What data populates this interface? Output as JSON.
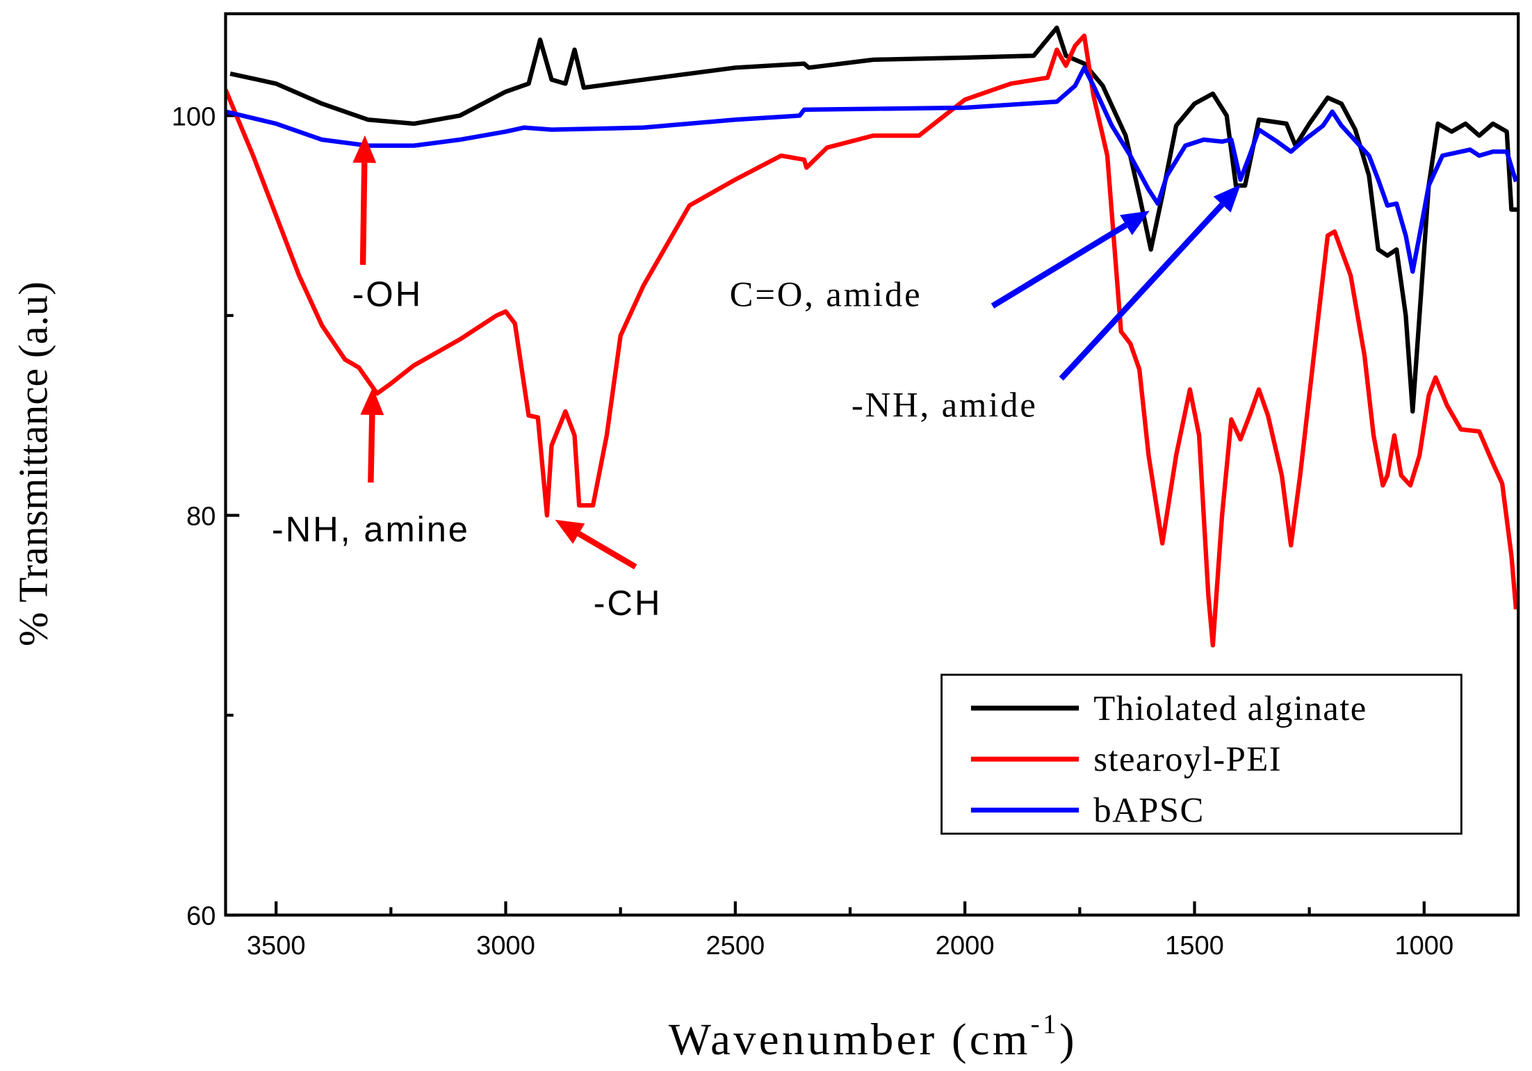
{
  "chart_data": {
    "type": "line",
    "xlabel": {
      "text": "Wavenumber (cm",
      "sup": "-1",
      "end": ")"
    },
    "ylabel": "% Transmittance (a.u)",
    "xlim": [
      3610,
      795
    ],
    "ylim": [
      60,
      105.1
    ],
    "xticks": [
      3500,
      3000,
      2500,
      2000,
      1500,
      1000
    ],
    "xminor_ticks": [
      3250,
      2750,
      2250,
      1750,
      1250
    ],
    "yticks": [
      60,
      80,
      100
    ],
    "yminor_ticks": [
      70,
      90
    ],
    "legend": "lower right",
    "series": [
      {
        "name": "Thiolated alginate",
        "color": "#000000",
        "x": [
          3600,
          3500,
          3400,
          3300,
          3200,
          3100,
          3000,
          2950,
          2925,
          2900,
          2870,
          2850,
          2830,
          2700,
          2500,
          2350,
          2340,
          2200,
          2000,
          1850,
          1800,
          1780,
          1740,
          1700,
          1650,
          1620,
          1595,
          1570,
          1540,
          1500,
          1460,
          1430,
          1410,
          1390,
          1360,
          1300,
          1280,
          1250,
          1210,
          1180,
          1150,
          1120,
          1100,
          1080,
          1060,
          1040,
          1025,
          1010,
          990,
          970,
          940,
          910,
          880,
          850,
          820,
          810,
          795
        ],
        "values": [
          102.1,
          101.6,
          100.6,
          99.8,
          99.6,
          100.0,
          101.2,
          101.6,
          103.8,
          101.8,
          101.6,
          103.3,
          101.4,
          101.8,
          102.4,
          102.6,
          102.4,
          102.8,
          102.9,
          103.0,
          104.4,
          103.0,
          102.6,
          101.5,
          99.0,
          96.0,
          93.3,
          96,
          99.5,
          100.6,
          101.1,
          100.0,
          96.5,
          96.5,
          99.8,
          99.6,
          98.5,
          99.6,
          100.9,
          100.6,
          99.3,
          97.0,
          93.3,
          93.0,
          93.3,
          90,
          85.2,
          90,
          96.5,
          99.6,
          99.2,
          99.6,
          99.0,
          99.6,
          99.2,
          95.3,
          95.3
        ]
      },
      {
        "name": "stearoyl-PEI",
        "color": "#ff0000",
        "x": [
          3610,
          3550,
          3500,
          3450,
          3400,
          3350,
          3320,
          3280,
          3250,
          3200,
          3100,
          3020,
          3000,
          2980,
          2950,
          2930,
          2910,
          2900,
          2870,
          2850,
          2840,
          2810,
          2780,
          2750,
          2700,
          2600,
          2500,
          2400,
          2350,
          2345,
          2300,
          2200,
          2100,
          2000,
          1900,
          1820,
          1800,
          1780,
          1760,
          1740,
          1720,
          1690,
          1660,
          1640,
          1620,
          1600,
          1570,
          1540,
          1510,
          1490,
          1470,
          1460,
          1440,
          1420,
          1400,
          1380,
          1360,
          1340,
          1310,
          1290,
          1270,
          1240,
          1210,
          1195,
          1160,
          1130,
          1110,
          1090,
          1080,
          1065,
          1050,
          1030,
          1010,
          990,
          975,
          950,
          920,
          880,
          850,
          830,
          810,
          800
        ],
        "values": [
          101.3,
          98,
          95,
          92,
          89.5,
          87.8,
          87.4,
          86.1,
          86.6,
          87.5,
          88.8,
          90,
          90.2,
          89.6,
          85,
          84.9,
          80.0,
          83.5,
          85.2,
          84,
          80.5,
          80.5,
          84,
          89,
          91.5,
          95.5,
          96.8,
          98,
          97.8,
          97.4,
          98.4,
          99,
          99,
          100.8,
          101.6,
          101.9,
          103.3,
          102.5,
          103.5,
          104.0,
          101,
          98,
          89.2,
          88.6,
          87.3,
          83,
          78.6,
          83,
          86.3,
          84,
          76,
          73.5,
          80,
          84.8,
          83.8,
          85,
          86.3,
          85,
          82,
          78.5,
          82,
          88,
          94,
          94.2,
          92,
          88,
          84,
          81.5,
          82,
          84,
          82,
          81.5,
          83,
          86,
          86.9,
          85.5,
          84.3,
          84.2,
          82.6,
          81.6,
          78,
          75.3
        ]
      },
      {
        "name": "bAPSC",
        "color": "#0000ff",
        "x": [
          3610,
          3500,
          3400,
          3300,
          3200,
          3100,
          3000,
          2960,
          2900,
          2700,
          2500,
          2360,
          2350,
          2000,
          1800,
          1760,
          1740,
          1720,
          1680,
          1640,
          1600,
          1580,
          1560,
          1520,
          1480,
          1440,
          1420,
          1400,
          1380,
          1360,
          1320,
          1290,
          1260,
          1220,
          1200,
          1180,
          1140,
          1120,
          1100,
          1080,
          1060,
          1040,
          1025,
          1010,
          990,
          960,
          900,
          880,
          850,
          820,
          800
        ],
        "values": [
          100.2,
          99.6,
          98.8,
          98.5,
          98.5,
          98.8,
          99.2,
          99.4,
          99.3,
          99.4,
          99.8,
          100,
          100.3,
          100.4,
          100.7,
          101.5,
          102.4,
          101.5,
          99.5,
          98,
          96.3,
          95.6,
          97,
          98.5,
          98.8,
          98.7,
          98.8,
          96.8,
          98,
          99.3,
          98.7,
          98.2,
          98.8,
          99.5,
          100.2,
          99.5,
          98.5,
          98.0,
          96.8,
          95.5,
          95.6,
          94,
          92.2,
          94,
          96.5,
          98.0,
          98.3,
          98.0,
          98.2,
          98.2,
          96.7
        ]
      }
    ],
    "annotations": [
      "-OH",
      "-NH, amine",
      "-CH",
      "C=O, amide",
      "-NH, amide"
    ]
  }
}
